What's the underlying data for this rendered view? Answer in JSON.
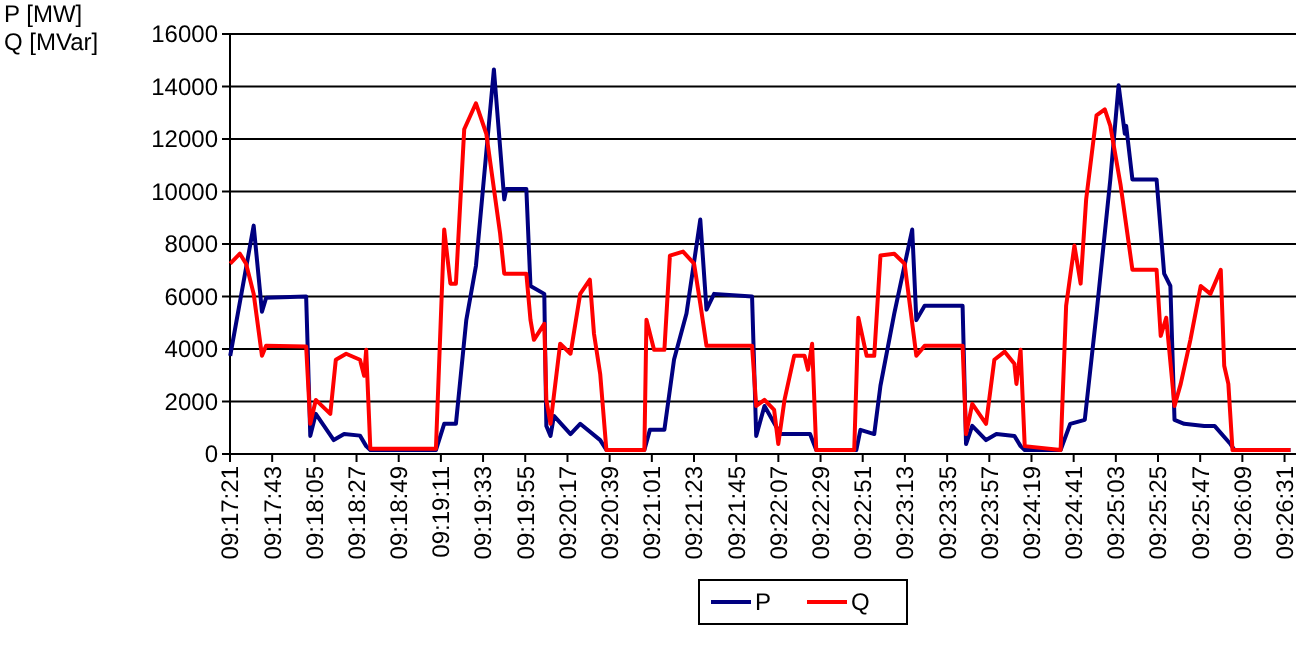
{
  "chart_data": {
    "type": "line",
    "ylabel": "P [MW]\nQ [MVar]",
    "xlim": [
      9.28917,
      9.4436
    ],
    "ylim": [
      0,
      16000
    ],
    "yticks": [
      0,
      2000,
      4000,
      6000,
      8000,
      10000,
      12000,
      14000,
      16000
    ],
    "xticks": [
      {
        "value": 9.28917,
        "label": "09:17:21"
      },
      {
        "value": 9.29528,
        "label": "09:17:43"
      },
      {
        "value": 9.30139,
        "label": "09:18:05"
      },
      {
        "value": 9.3075,
        "label": "09:18:27"
      },
      {
        "value": 9.31361,
        "label": "09:18:49"
      },
      {
        "value": 9.31972,
        "label": "09:19:11"
      },
      {
        "value": 9.32583,
        "label": "09:19:33"
      },
      {
        "value": 9.33194,
        "label": "09:19:55"
      },
      {
        "value": 9.33806,
        "label": "09:20:17"
      },
      {
        "value": 9.34417,
        "label": "09:20:39"
      },
      {
        "value": 9.35028,
        "label": "09:21:01"
      },
      {
        "value": 9.35639,
        "label": "09:21:23"
      },
      {
        "value": 9.3625,
        "label": "09:21:45"
      },
      {
        "value": 9.36861,
        "label": "09:22:07"
      },
      {
        "value": 9.37472,
        "label": "09:22:29"
      },
      {
        "value": 9.38083,
        "label": "09:22:51"
      },
      {
        "value": 9.38694,
        "label": "09:23:13"
      },
      {
        "value": 9.39306,
        "label": "09:23:35"
      },
      {
        "value": 9.39917,
        "label": "09:23:57"
      },
      {
        "value": 9.40528,
        "label": "09:24:19"
      },
      {
        "value": 9.41139,
        "label": "09:24:41"
      },
      {
        "value": 9.4175,
        "label": "09:25:03"
      },
      {
        "value": 9.42361,
        "label": "09:25:25"
      },
      {
        "value": 9.42972,
        "label": "09:25:47"
      },
      {
        "value": 9.43583,
        "label": "09:26:09"
      },
      {
        "value": 9.44194,
        "label": "09:26:31"
      }
    ],
    "grid": "y",
    "legend": "bottom",
    "marker": "none",
    "line_style": "solid",
    "series": [
      {
        "name": "P",
        "color": "#000080",
        "x": [
          9.2892,
          9.2926,
          9.2938,
          9.2944,
          9.3002,
          9.3008,
          9.3016,
          9.3042,
          9.3057,
          9.308,
          9.3089,
          9.3095,
          9.319,
          9.3202,
          9.3219,
          9.3234,
          9.3248,
          9.3274,
          9.3289,
          9.3292,
          9.3321,
          9.3327,
          9.3347,
          9.335,
          9.3356,
          9.3361,
          9.3385,
          9.3399,
          9.3428,
          9.3437,
          9.3492,
          9.35,
          9.3521,
          9.3535,
          9.3553,
          9.3573,
          9.3582,
          9.3593,
          9.3648,
          9.3654,
          9.3666,
          9.3689,
          9.3732,
          9.3741,
          9.3799,
          9.3805,
          9.3825,
          9.3834,
          9.3854,
          9.388,
          9.3886,
          9.3898,
          9.3953,
          9.3958,
          9.3967,
          9.3987,
          9.4002,
          9.4028,
          9.4037,
          9.4043,
          9.4095,
          9.4109,
          9.413,
          9.4147,
          9.4167,
          9.4179,
          9.4188,
          9.419,
          9.4199,
          9.4234,
          9.4245,
          9.4254,
          9.426,
          9.4274,
          9.4303,
          9.4318,
          9.4341,
          9.4347,
          9.4428
        ],
        "values": [
          3740,
          8700,
          5420,
          5950,
          6000,
          690,
          1530,
          530,
          760,
          700,
          300,
          150,
          150,
          1150,
          1150,
          5100,
          7170,
          14650,
          9700,
          10100,
          10100,
          6400,
          6100,
          1070,
          690,
          1450,
          760,
          1150,
          530,
          150,
          150,
          920,
          920,
          3600,
          5350,
          8930,
          5500,
          6100,
          6000,
          690,
          1830,
          760,
          760,
          150,
          150,
          920,
          760,
          2600,
          5350,
          8550,
          5100,
          5650,
          5650,
          380,
          1070,
          530,
          760,
          690,
          300,
          150,
          150,
          1150,
          1300,
          5350,
          10460,
          14050,
          12200,
          12500,
          10460,
          10460,
          6870,
          6400,
          1300,
          1150,
          1070,
          1070,
          380,
          150,
          150
        ]
      },
      {
        "name": "Q",
        "color": "#ff0000",
        "x": [
          9.2892,
          9.2906,
          9.2915,
          9.2926,
          9.2938,
          9.2944,
          9.3002,
          9.3008,
          9.3016,
          9.3037,
          9.3045,
          9.306,
          9.308,
          9.3086,
          9.3089,
          9.3095,
          9.319,
          9.3202,
          9.3211,
          9.3219,
          9.3231,
          9.3248,
          9.3263,
          9.3283,
          9.3289,
          9.3321,
          9.3327,
          9.3332,
          9.3347,
          9.335,
          9.3356,
          9.337,
          9.3385,
          9.3399,
          9.3413,
          9.3419,
          9.3428,
          9.3437,
          9.3492,
          9.3495,
          9.3506,
          9.3521,
          9.3529,
          9.3548,
          9.3564,
          9.3573,
          9.3582,
          9.3648,
          9.3654,
          9.3666,
          9.368,
          9.3686,
          9.3695,
          9.3709,
          9.3724,
          9.3729,
          9.3735,
          9.3741,
          9.3796,
          9.3802,
          9.3814,
          9.3825,
          9.3834,
          9.3854,
          9.3869,
          9.3886,
          9.3898,
          9.3953,
          9.3958,
          9.3967,
          9.3987,
          9.3999,
          9.4014,
          9.4028,
          9.4031,
          9.4037,
          9.4043,
          9.4095,
          9.4103,
          9.4115,
          9.4124,
          9.4132,
          9.4147,
          9.4159,
          9.4167,
          9.4182,
          9.4199,
          9.4234,
          9.424,
          9.4248,
          9.426,
          9.4269,
          9.4283,
          9.4298,
          9.4312,
          9.4327,
          9.4332,
          9.4338,
          9.4344,
          9.4428
        ],
        "values": [
          7250,
          7630,
          7250,
          6100,
          3740,
          4120,
          4100,
          1150,
          2060,
          1530,
          3590,
          3820,
          3590,
          2980,
          3970,
          200,
          200,
          8550,
          6490,
          6490,
          12370,
          13360,
          12200,
          8400,
          6870,
          6870,
          5110,
          4350,
          4960,
          2060,
          1150,
          4200,
          3820,
          6100,
          6640,
          4580,
          3050,
          150,
          150,
          5110,
          3970,
          3970,
          7560,
          7710,
          7250,
          5730,
          4120,
          4120,
          1830,
          2060,
          1680,
          380,
          2060,
          3740,
          3740,
          3210,
          4200,
          150,
          150,
          5190,
          3740,
          3740,
          7560,
          7630,
          7250,
          3740,
          4120,
          4120,
          760,
          1910,
          1150,
          3590,
          3900,
          3440,
          2670,
          3970,
          300,
          150,
          5650,
          7940,
          6490,
          9700,
          12900,
          13130,
          12500,
          10230,
          7020,
          7020,
          4500,
          5190,
          1830,
          2670,
          4350,
          6400,
          6100,
          7020,
          3360,
          2670,
          150,
          150
        ]
      }
    ]
  }
}
